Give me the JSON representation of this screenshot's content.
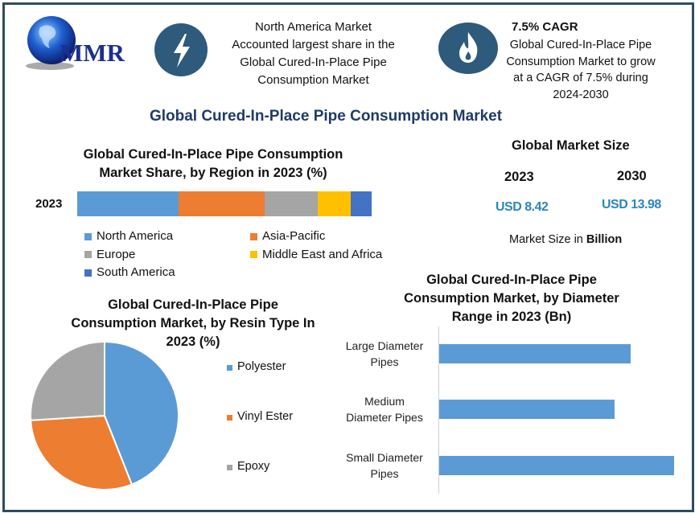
{
  "brand": {
    "logo_text": "MMR"
  },
  "header": {
    "highlight1": {
      "icon": "lightning-bolt-icon",
      "lines": [
        "North America Market",
        "Accounted largest share in the",
        "Global Cured-In-Place Pipe",
        "Consumption Market"
      ]
    },
    "highlight2": {
      "icon": "flame-icon",
      "heading": "7.5% CAGR",
      "lines": [
        "Global Cured-In-Place Pipe",
        "Consumption Market to grow",
        "at a CAGR of 7.5% during",
        "2024-2030"
      ]
    }
  },
  "main_title": "Global Cured-In-Place Pipe Consumption Market",
  "market_size": {
    "title": "Global Market Size",
    "years": [
      "2023",
      "2030"
    ],
    "values": [
      "USD 8.42",
      "USD 13.98"
    ],
    "note_prefix": "Market Size in ",
    "note_bold": "Billion"
  },
  "colors": {
    "frame": "#2f4d5e",
    "icon_circle": "#2e5a7c",
    "title": "#1f3b66",
    "value": "#2b86be"
  },
  "chart_data": [
    {
      "type": "bar",
      "orientation": "horizontal-stacked",
      "title_lines": [
        "Global Cured-In-Place Pipe Consumption",
        "Market Share, by Region in 2023 (%)"
      ],
      "categories": [
        "2023"
      ],
      "series": [
        {
          "name": "North America",
          "values": [
            34
          ],
          "color": "#5b9bd5"
        },
        {
          "name": "Asia-Pacific",
          "values": [
            29
          ],
          "color": "#ed7d31"
        },
        {
          "name": "Europe",
          "values": [
            18
          ],
          "color": "#a5a5a5"
        },
        {
          "name": "Middle East and Africa",
          "values": [
            11
          ],
          "color": "#ffc000"
        },
        {
          "name": "South America",
          "values": [
            7
          ],
          "color": "#4472c4"
        }
      ],
      "legend": "bottom"
    },
    {
      "type": "pie",
      "title_lines": [
        "Global Cured-In-Place Pipe",
        "Consumption Market, by Resin Type In",
        "2023 (%)"
      ],
      "slices": [
        {
          "name": "Polyester",
          "value": 44,
          "color": "#5b9bd5"
        },
        {
          "name": "Vinyl Ester",
          "value": 30,
          "color": "#ed7d31"
        },
        {
          "name": "Epoxy",
          "value": 26,
          "color": "#a5a5a5"
        }
      ],
      "legend": "right"
    },
    {
      "type": "bar",
      "orientation": "horizontal",
      "title_lines": [
        "Global Cured-In-Place Pipe",
        "Consumption Market, by Diameter",
        "Range in 2023 (Bn)"
      ],
      "categories": [
        [
          "Large Diameter",
          "Pipes"
        ],
        [
          "Medium",
          "Diameter Pipes"
        ],
        [
          "Small Diameter",
          "Pipes"
        ]
      ],
      "values": [
        2.68,
        2.45,
        3.29
      ],
      "color": "#5b9bd5",
      "xlim": [
        0,
        3.6
      ],
      "grid": false
    }
  ]
}
